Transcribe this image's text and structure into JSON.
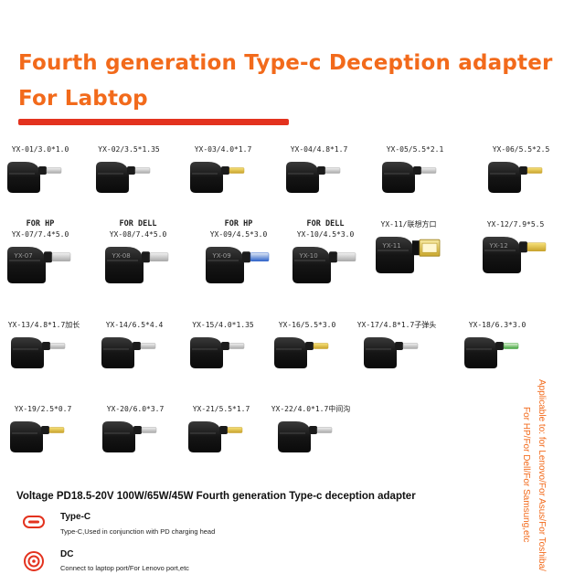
{
  "title_line1": "Fourth generation Type-c Deception adapter",
  "title_line2": "For Labtop",
  "adapters": [
    {
      "code": "YX-01/3.0*1.0",
      "brand": "",
      "tip": "silver",
      "label": ""
    },
    {
      "code": "YX-02/3.5*1.35",
      "brand": "",
      "tip": "silver",
      "label": ""
    },
    {
      "code": "YX-03/4.0*1.7",
      "brand": "",
      "tip": "gold",
      "label": ""
    },
    {
      "code": "YX-04/4.8*1.7",
      "brand": "",
      "tip": "silver",
      "label": ""
    },
    {
      "code": "YX-05/5.5*2.1",
      "brand": "",
      "tip": "silver",
      "label": ""
    },
    {
      "code": "YX-06/5.5*2.5",
      "brand": "",
      "tip": "gold",
      "label": ""
    },
    {
      "code": "YX-07/7.4*5.0",
      "brand": "FOR HP",
      "tip": "silver",
      "label": "YX-07"
    },
    {
      "code": "YX-08/7.4*5.0",
      "brand": "FOR DELL",
      "tip": "silver",
      "label": "YX-08"
    },
    {
      "code": "YX-09/4.5*3.0",
      "brand": "FOR HP",
      "tip": "blue",
      "label": "YX-09"
    },
    {
      "code": "YX-10/4.5*3.0",
      "brand": "FOR DELL",
      "tip": "silver",
      "label": "YX-10"
    },
    {
      "code": "YX-11/联想方口",
      "brand": "",
      "tip": "lenovo",
      "label": "YX-11"
    },
    {
      "code": "YX-12/7.9*5.5",
      "brand": "",
      "tip": "gold",
      "label": "YX-12"
    },
    {
      "code": "YX-13/4.8*1.7加长",
      "brand": "",
      "tip": "silver",
      "label": ""
    },
    {
      "code": "YX-14/6.5*4.4",
      "brand": "",
      "tip": "silver",
      "label": ""
    },
    {
      "code": "YX-15/4.0*1.35",
      "brand": "",
      "tip": "silver",
      "label": ""
    },
    {
      "code": "YX-16/5.5*3.0",
      "brand": "",
      "tip": "gold",
      "label": ""
    },
    {
      "code": "YX-17/4.8*1.7子弹头",
      "brand": "",
      "tip": "silver",
      "label": ""
    },
    {
      "code": "YX-18/6.3*3.0",
      "brand": "",
      "tip": "green",
      "label": ""
    },
    {
      "code": "YX-19/2.5*0.7",
      "brand": "",
      "tip": "gold",
      "label": ""
    },
    {
      "code": "YX-20/6.0*3.7",
      "brand": "",
      "tip": "silver",
      "label": ""
    },
    {
      "code": "YX-21/5.5*1.7",
      "brand": "",
      "tip": "gold",
      "label": ""
    },
    {
      "code": "YX-22/4.0*1.7中间沟",
      "brand": "",
      "tip": "silver",
      "label": ""
    }
  ],
  "voltage_text": "Voltage PD18.5-20V 100W/65W/45W  Fourth generation Type-c deception adapter",
  "legend": [
    {
      "name": "Type-C",
      "desc": "Type-C,Used in conjunction with PD charging head",
      "icon": "type-c-port-icon"
    },
    {
      "name": "DC",
      "desc": "Connect to laptop port/For Lenovo port,etc",
      "icon": "dc-port-icon"
    }
  ],
  "applicable_line1": "Applicable to: for Lenovo/For Asus/For Toshiba/",
  "applicable_line2": "For HP/For Dell/For Samsung,etc",
  "colors": {
    "accent": "#f26a1b",
    "bar": "#e3321e",
    "connector": "#1a1a1a"
  }
}
